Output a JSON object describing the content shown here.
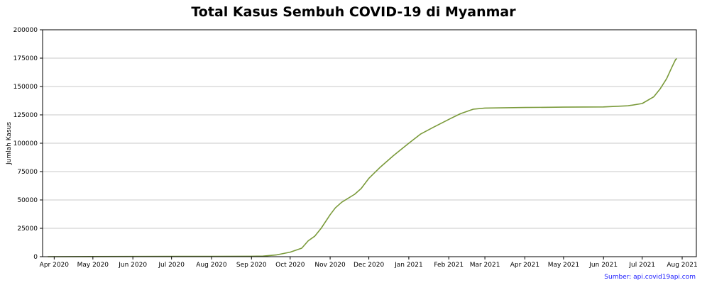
{
  "chart_data": {
    "type": "line",
    "title": "Total Kasus Sembuh COVID-19 di Myanmar",
    "ylabel": "Jumlah Kasus",
    "xlabel": "",
    "ylim": [
      0,
      200000
    ],
    "xlim": [
      "2020-03-23",
      "2021-08-12"
    ],
    "grid": "horizontal",
    "x_ticks": [
      "2020-04-01",
      "2020-05-01",
      "2020-06-01",
      "2020-07-01",
      "2020-08-01",
      "2020-09-01",
      "2020-10-01",
      "2020-11-01",
      "2020-12-01",
      "2021-01-01",
      "2021-02-01",
      "2021-03-01",
      "2021-04-01",
      "2021-05-01",
      "2021-06-01",
      "2021-07-01",
      "2021-08-01"
    ],
    "x_tick_labels": [
      "Apr 2020",
      "May 2020",
      "Jun 2020",
      "Jul 2020",
      "Aug 2020",
      "Sep 2020",
      "Oct 2020",
      "Nov 2020",
      "Dec 2020",
      "Jan 2021",
      "Feb 2021",
      "Mar 2021",
      "Apr 2021",
      "May 2021",
      "Jun 2021",
      "Jul 2021",
      "Aug 2021"
    ],
    "y_ticks": [
      0,
      25000,
      50000,
      75000,
      100000,
      125000,
      150000,
      175000,
      200000
    ],
    "y_tick_labels": [
      "0",
      "25000",
      "50000",
      "75000",
      "100000",
      "125000",
      "150000",
      "175000",
      "200000"
    ],
    "series": [
      {
        "color": "#7a9a3a",
        "points": [
          [
            "2020-03-27",
            0
          ],
          [
            "2020-06-01",
            200
          ],
          [
            "2020-08-01",
            300
          ],
          [
            "2020-09-01",
            350
          ],
          [
            "2020-09-10",
            500
          ],
          [
            "2020-09-20",
            1500
          ],
          [
            "2020-10-01",
            4000
          ],
          [
            "2020-10-10",
            7500
          ],
          [
            "2020-10-15",
            14000
          ],
          [
            "2020-10-20",
            18000
          ],
          [
            "2020-10-25",
            25000
          ],
          [
            "2020-11-01",
            37000
          ],
          [
            "2020-11-05",
            43000
          ],
          [
            "2020-11-10",
            48000
          ],
          [
            "2020-11-20",
            55000
          ],
          [
            "2020-11-25",
            60000
          ],
          [
            "2020-12-01",
            69000
          ],
          [
            "2020-12-10",
            79000
          ],
          [
            "2020-12-20",
            89000
          ],
          [
            "2021-01-01",
            100000
          ],
          [
            "2021-01-10",
            108000
          ],
          [
            "2021-01-20",
            114000
          ],
          [
            "2021-02-01",
            121000
          ],
          [
            "2021-02-10",
            126000
          ],
          [
            "2021-02-20",
            130000
          ],
          [
            "2021-03-01",
            131000
          ],
          [
            "2021-04-01",
            131500
          ],
          [
            "2021-05-01",
            131800
          ],
          [
            "2021-06-01",
            132000
          ],
          [
            "2021-06-20",
            133000
          ],
          [
            "2021-07-01",
            135000
          ],
          [
            "2021-07-10",
            141000
          ],
          [
            "2021-07-15",
            148000
          ],
          [
            "2021-07-20",
            157000
          ],
          [
            "2021-07-24",
            167000
          ],
          [
            "2021-07-27",
            174000
          ],
          [
            "2021-07-28",
            174500
          ]
        ]
      }
    ]
  },
  "source": "Sumber: api.covid19api.com",
  "colors": {
    "line": "#7a9a3a",
    "grid": "#c8c8c8",
    "axis": "#000000",
    "source_text": "#1a1aff"
  }
}
